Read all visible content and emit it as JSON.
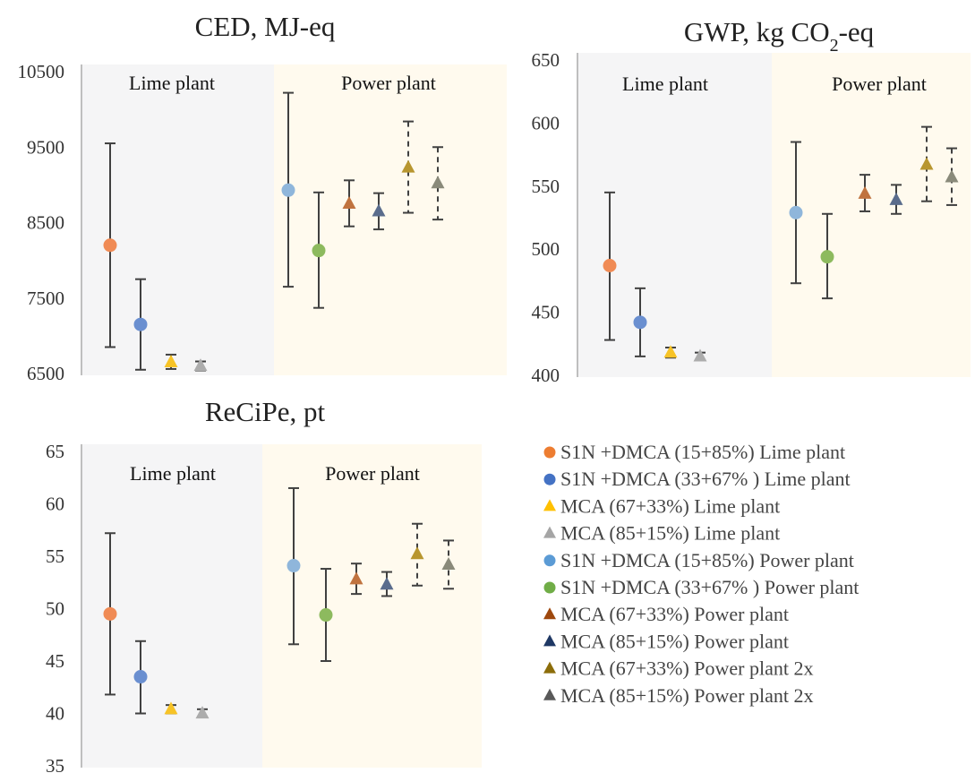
{
  "chart_data": [
    {
      "type": "scatter",
      "title": "CED, MJ-eq",
      "title_sub": "",
      "title_tail": "",
      "ylim": [
        6500,
        10500
      ],
      "yticks": [
        "10500",
        "9500",
        "8500",
        "7500",
        "6500"
      ],
      "ytick_values": [
        10500,
        9500,
        8500,
        7500,
        6500
      ],
      "regions": [
        "Lime plant",
        "Power plant"
      ],
      "points": [
        {
          "series": 0,
          "y": 8200,
          "low": 6850,
          "high": 9550
        },
        {
          "series": 1,
          "y": 7150,
          "low": 6550,
          "high": 7750
        },
        {
          "series": 2,
          "y": 6650,
          "low": 6560,
          "high": 6750
        },
        {
          "series": 3,
          "y": 6600,
          "low": 6540,
          "high": 6660
        },
        {
          "series": 4,
          "y": 8930,
          "low": 7650,
          "high": 10220
        },
        {
          "series": 5,
          "y": 8130,
          "low": 7370,
          "high": 8900
        },
        {
          "series": 6,
          "y": 8750,
          "low": 8450,
          "high": 9060
        },
        {
          "series": 7,
          "y": 8650,
          "low": 8410,
          "high": 8890
        },
        {
          "series": 8,
          "y": 9230,
          "low": 8630,
          "high": 9840
        },
        {
          "series": 9,
          "y": 9020,
          "low": 8540,
          "high": 9500
        }
      ]
    },
    {
      "type": "scatter",
      "title": "GWP, kg CO",
      "title_sub": "2",
      "title_tail": "-eq",
      "ylim": [
        400,
        650
      ],
      "yticks": [
        "650",
        "600",
        "550",
        "500",
        "450",
        "400"
      ],
      "ytick_values": [
        650,
        600,
        550,
        500,
        450,
        400
      ],
      "regions": [
        "Lime plant",
        "Power plant"
      ],
      "points": [
        {
          "series": 0,
          "y": 487,
          "low": 428,
          "high": 545
        },
        {
          "series": 1,
          "y": 442,
          "low": 415,
          "high": 469
        },
        {
          "series": 2,
          "y": 418,
          "low": 414,
          "high": 422
        },
        {
          "series": 3,
          "y": 415,
          "low": 412,
          "high": 418
        },
        {
          "series": 4,
          "y": 529,
          "low": 473,
          "high": 585
        },
        {
          "series": 5,
          "y": 494,
          "low": 461,
          "high": 528
        },
        {
          "series": 6,
          "y": 544,
          "low": 530,
          "high": 559
        },
        {
          "series": 7,
          "y": 539,
          "low": 528,
          "high": 551
        },
        {
          "series": 8,
          "y": 567,
          "low": 538,
          "high": 597
        },
        {
          "series": 9,
          "y": 557,
          "low": 535,
          "high": 580
        }
      ]
    },
    {
      "type": "scatter",
      "title": "ReCiPe, pt",
      "title_sub": "",
      "title_tail": "",
      "ylim": [
        35,
        65
      ],
      "yticks": [
        "65",
        "60",
        "55",
        "50",
        "45",
        "40",
        "35"
      ],
      "ytick_values": [
        65,
        60,
        55,
        50,
        45,
        40,
        35
      ],
      "regions": [
        "Lime plant",
        "Power plant"
      ],
      "points": [
        {
          "series": 0,
          "y": 49.5,
          "low": 41.8,
          "high": 57.2
        },
        {
          "series": 1,
          "y": 43.5,
          "low": 40.0,
          "high": 46.9
        },
        {
          "series": 2,
          "y": 40.4,
          "low": 40.0,
          "high": 40.8
        },
        {
          "series": 3,
          "y": 40.0,
          "low": 39.7,
          "high": 40.4
        },
        {
          "series": 4,
          "y": 54.1,
          "low": 46.6,
          "high": 61.5
        },
        {
          "series": 5,
          "y": 49.4,
          "low": 45.0,
          "high": 53.8
        },
        {
          "series": 6,
          "y": 52.8,
          "low": 51.4,
          "high": 54.3
        },
        {
          "series": 7,
          "y": 52.3,
          "low": 51.2,
          "high": 53.5
        },
        {
          "series": 8,
          "y": 55.2,
          "low": 52.2,
          "high": 58.1
        },
        {
          "series": 9,
          "y": 54.2,
          "low": 51.9,
          "high": 56.5
        }
      ]
    }
  ],
  "legend": [
    {
      "label": "S1N +DMCA (15+85%) Lime plant",
      "marker": "circle",
      "color": "#ED7D31"
    },
    {
      "label": "S1N +DMCA (33+67% ) Lime plant",
      "marker": "circle",
      "color": "#4472C4"
    },
    {
      "label": "MCA (67+33%) Lime plant",
      "marker": "triangle",
      "color": "#FFC000"
    },
    {
      "label": "MCA (85+15%) Lime plant",
      "marker": "triangle",
      "color": "#A5A5A5"
    },
    {
      "label": "S1N +DMCA (15+85%) Power plant",
      "marker": "circle",
      "color": "#5B9BD5"
    },
    {
      "label": "S1N +DMCA (33+67% ) Power plant",
      "marker": "circle",
      "color": "#70AD47"
    },
    {
      "label": "MCA (67+33%) Power plant",
      "marker": "triangle",
      "color": "#9E480E"
    },
    {
      "label": "MCA (85+15%) Power plant",
      "marker": "triangle",
      "color": "#1F3864"
    },
    {
      "label": "MCA (67+33%) Power plant 2x",
      "marker": "triangle",
      "color": "#8C6D0A"
    },
    {
      "label": "MCA (85+15%) Power plant 2x",
      "marker": "triangle",
      "color": "#595959"
    }
  ],
  "marker_colors": [
    "#F08B55",
    "#6A8FD0",
    "#F7C326",
    "#ACACAC",
    "#8FB6DB",
    "#8DBA5E",
    "#C0733F",
    "#5A6C8C",
    "#B8962F",
    "#8A8A7A"
  ],
  "dashed_series": [
    8,
    9
  ],
  "region_colors": [
    "#F5F5F6",
    "#FFFAEE"
  ]
}
